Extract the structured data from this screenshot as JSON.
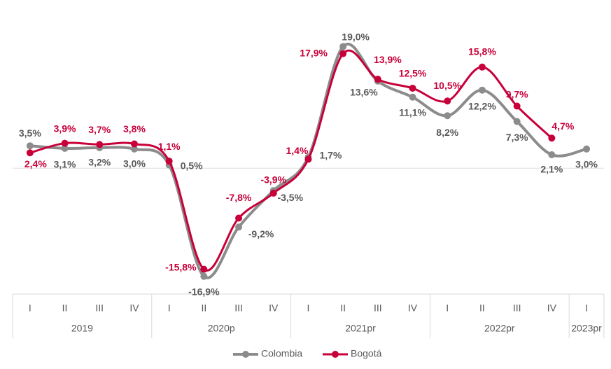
{
  "chart_data": {
    "type": "line",
    "categories": [
      "I",
      "II",
      "III",
      "IV",
      "I",
      "II",
      "III",
      "IV",
      "I",
      "II",
      "III",
      "IV",
      "I",
      "II",
      "III",
      "IV",
      "I"
    ],
    "groups": [
      {
        "label": "2019",
        "count": 4
      },
      {
        "label": "2020p",
        "count": 4
      },
      {
        "label": "2021pr",
        "count": 4
      },
      {
        "label": "2022pr",
        "count": 4
      },
      {
        "label": "2023pr",
        "count": 1
      }
    ],
    "series": [
      {
        "name": "Colombia",
        "color": "#8c8c8c",
        "label_color": "#595959",
        "values": [
          3.5,
          3.1,
          3.2,
          3.0,
          0.5,
          -16.9,
          -9.2,
          -3.5,
          1.7,
          19.0,
          13.6,
          11.1,
          8.2,
          12.2,
          7.3,
          2.1,
          3.0
        ],
        "value_labels": [
          "3,5%",
          "3,1%",
          "3,2%",
          "3,0%",
          "0,5%",
          "-16,9%",
          "-9,2%",
          "-3,5%",
          "1,7%",
          "19,0%",
          "13,6%",
          "11,1%",
          "8,2%",
          "12,2%",
          "7,3%",
          "2,1%",
          "3,0%"
        ]
      },
      {
        "name": "Bogotá",
        "color": "#c8003a",
        "label_color": "#c8003a",
        "values": [
          2.4,
          3.9,
          3.7,
          3.8,
          1.1,
          -15.8,
          -7.8,
          -3.9,
          1.4,
          17.9,
          13.9,
          12.5,
          10.5,
          15.8,
          9.7,
          4.7,
          null
        ],
        "value_labels": [
          "2,4%",
          "3,9%",
          "3,7%",
          "3,8%",
          "1,1%",
          "-15,8%",
          "-7,8%",
          "-3,9%",
          "1,4%",
          "17,9%",
          "13,9%",
          "12,5%",
          "10,5%",
          "15,8%",
          "9,7%",
          "4,7%",
          null
        ]
      }
    ],
    "ylim": [
      -20,
      23
    ],
    "legend": "bottom"
  }
}
